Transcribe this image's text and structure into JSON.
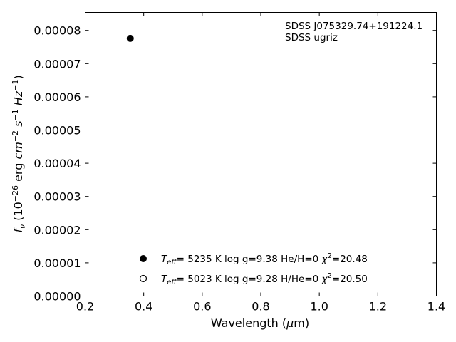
{
  "chart_data": {
    "type": "scatter",
    "xlabel": "Wavelength (μm)",
    "ylabel": "f_ν (10^−26 erg cm^−2 s^−1 Hz^−1)",
    "xlim": [
      0.2,
      1.4
    ],
    "ylim": [
      0.0,
      8.541e-05
    ],
    "x_ticks": [
      "0.2",
      "0.4",
      "0.6",
      "0.8",
      "1.0",
      "1.2",
      "1.4"
    ],
    "y_ticks": [
      "0.00000",
      "0.00001",
      "0.00002",
      "0.00003",
      "0.00004",
      "0.00005",
      "0.00006",
      "0.00007",
      "0.00008"
    ],
    "annotations": [
      "SDSS J075329.74+191224.1",
      "SDSS ugriz"
    ],
    "series": [
      {
        "name": "T_eff= 5235 K log g=9.38 He/H=0 χ²=20.48",
        "marker": "filled-circle",
        "points": [
          {
            "x": 0.354,
            "y": 7.76e-05
          }
        ]
      },
      {
        "name": "T_eff= 5023 K log g=9.28 H/He=0 χ²=20.50",
        "marker": "open-circle",
        "points": []
      }
    ],
    "legend": {
      "position": "bottom-center",
      "entries": [
        {
          "teff_label": "5235 K",
          "logg": "log g=9.38",
          "comp": "He/H=0",
          "chi": "=20.48"
        },
        {
          "teff_label": "5023 K",
          "logg": "log g=9.28",
          "comp": "H/He=0",
          "chi": "=20.50"
        }
      ]
    },
    "grid": false
  },
  "colors": {
    "axis": "#000000",
    "marker": "#000000",
    "background": "#ffffff"
  }
}
